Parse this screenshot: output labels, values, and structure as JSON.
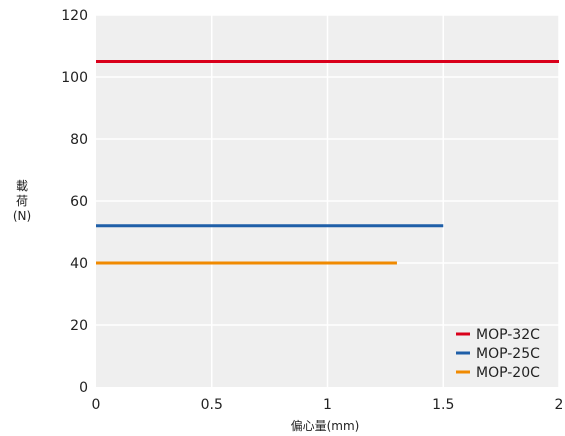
{
  "chart_data": {
    "type": "line",
    "xlabel": "偏心量(mm)",
    "ylabel_lines": [
      "載",
      "荷",
      "(N)"
    ],
    "x_ticks": [
      "0",
      "0.5",
      "1",
      "1.5",
      "2"
    ],
    "y_ticks": [
      "0",
      "20",
      "40",
      "60",
      "80",
      "100",
      "120"
    ],
    "xlim": [
      0,
      2
    ],
    "ylim": [
      0,
      120
    ],
    "grid": true,
    "legend_position": "bottom-right",
    "plot_background": "#efefef",
    "series": [
      {
        "name": "MOP-32C",
        "color": "#d9001b",
        "x": [
          0,
          2
        ],
        "y": [
          105,
          105
        ]
      },
      {
        "name": "MOP-25C",
        "color": "#1f5fa8",
        "x": [
          0,
          1.5
        ],
        "y": [
          52,
          52
        ]
      },
      {
        "name": "MOP-20C",
        "color": "#f08a00",
        "x": [
          0,
          1.3
        ],
        "y": [
          40,
          40
        ]
      }
    ]
  }
}
